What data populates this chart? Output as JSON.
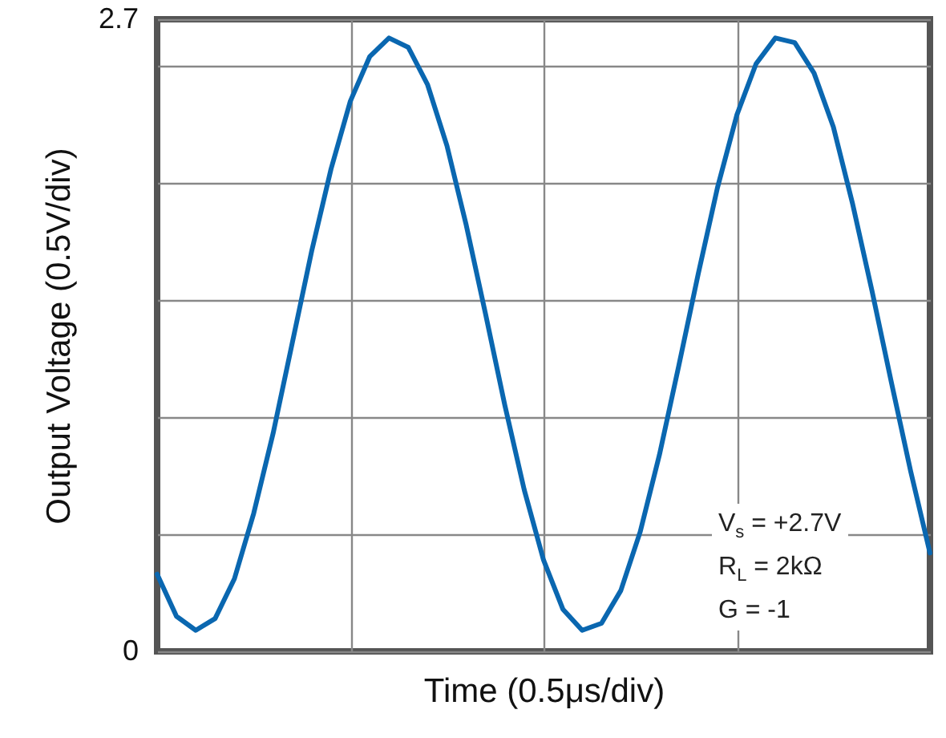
{
  "chart_data": {
    "type": "line",
    "xlabel": "Time (0.5μs/div)",
    "ylabel": "Output Voltage (0.5V/div)",
    "categories": [
      null,
      null,
      null,
      null,
      null,
      null,
      null,
      null,
      null,
      null,
      null,
      null,
      null,
      null,
      null,
      null,
      null,
      null,
      null,
      null,
      null,
      null,
      null,
      null,
      null,
      null,
      null,
      null,
      null,
      null,
      null,
      null,
      null,
      null,
      null,
      null,
      null,
      null,
      null,
      null,
      null
    ],
    "series": [
      {
        "color": "#0a67b0",
        "values": [
          0.33,
          0.15,
          0.09,
          0.14,
          0.31,
          0.59,
          0.93,
          1.32,
          1.71,
          2.06,
          2.35,
          2.54,
          2.62,
          2.58,
          2.42,
          2.16,
          1.82,
          1.44,
          1.05,
          0.69,
          0.39,
          0.18,
          0.09,
          0.12,
          0.26,
          0.51,
          0.84,
          1.22,
          1.61,
          1.98,
          2.29,
          2.51,
          2.62,
          2.6,
          2.47,
          2.24,
          1.91,
          1.54,
          1.15,
          0.77,
          0.42
        ]
      }
    ],
    "ylim": [
      0,
      2.7
    ],
    "yticks": [
      0,
      {
        "value": 0.5,
        "label": null
      },
      {
        "value": 1,
        "label": null
      },
      {
        "value": 1.5,
        "label": null
      },
      {
        "value": 2,
        "label": null
      },
      {
        "value": 2.5,
        "label": null
      },
      2.7
    ],
    "grid": true,
    "tick_labels": "y",
    "annotations": [
      "V$_{s}$ = +2.7V",
      "R$_{L}$ = 2kΩ",
      "G = -1"
    ]
  }
}
